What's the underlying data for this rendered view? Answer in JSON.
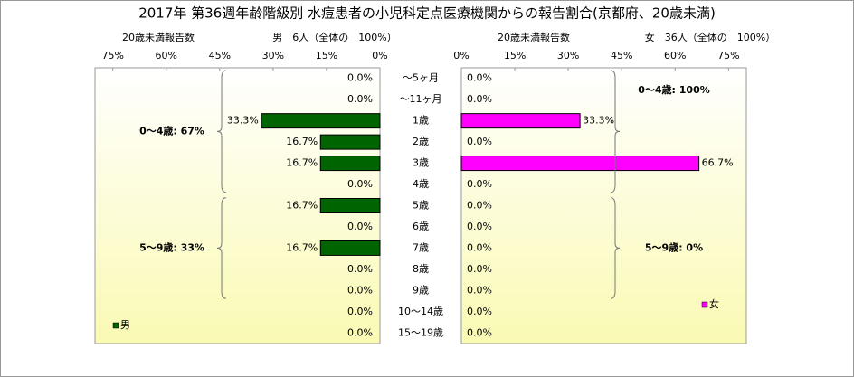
{
  "chart_data": {
    "type": "butterfly",
    "title": "2017年 第36週年齢階級別 水痘患者の小児科定点医療機関からの報告割合(京都府、20歳未満)",
    "categories": [
      "～5ヶ月",
      "～11ヶ月",
      "1歳",
      "2歳",
      "3歳",
      "4歳",
      "5歳",
      "6歳",
      "7歳",
      "8歳",
      "9歳",
      "10～14歳",
      "15～19歳"
    ],
    "xlim": [
      0,
      80
    ],
    "xticks": [
      {
        "value": 0,
        "label": "0%"
      },
      {
        "value": 15,
        "label": "15%"
      },
      {
        "value": 30,
        "label": "30%"
      },
      {
        "value": 45,
        "label": "45%"
      },
      {
        "value": 60,
        "label": "60%"
      },
      {
        "value": 75,
        "label": "75%"
      }
    ],
    "series": [
      {
        "name": "男",
        "color": "#006400",
        "axis_title": "20歳未満報告数",
        "subtitle": "男　6人（全体の　100%）",
        "values": [
          0,
          0,
          33.3,
          16.7,
          16.7,
          0,
          16.7,
          0,
          16.7,
          0,
          0,
          0,
          0
        ],
        "value_labels": [
          "0.0%",
          "0.0%",
          "33.3%",
          "16.7%",
          "16.7%",
          "0.0%",
          "16.7%",
          "0.0%",
          "16.7%",
          "0.0%",
          "0.0%",
          "0.0%",
          "0.0%"
        ],
        "annotations": [
          "0～4歳: 67%",
          "5～9歳: 33%"
        ]
      },
      {
        "name": "女",
        "color": "#ff00ff",
        "axis_title": "20歳未満報告数",
        "subtitle": "女　36人（全体の　100%）",
        "values": [
          0,
          0,
          33.3,
          0,
          66.7,
          0,
          0,
          0,
          0,
          0,
          0,
          0,
          0
        ],
        "value_labels": [
          "0.0%",
          "0.0%",
          "33.3%",
          "0.0%",
          "66.7%",
          "0.0%",
          "0.0%",
          "0.0%",
          "0.0%",
          "0.0%",
          "0.0%",
          "0.0%",
          "0.0%"
        ],
        "annotations": [
          "0～4歳: 100%",
          "5～9歳: 0%"
        ]
      }
    ]
  }
}
